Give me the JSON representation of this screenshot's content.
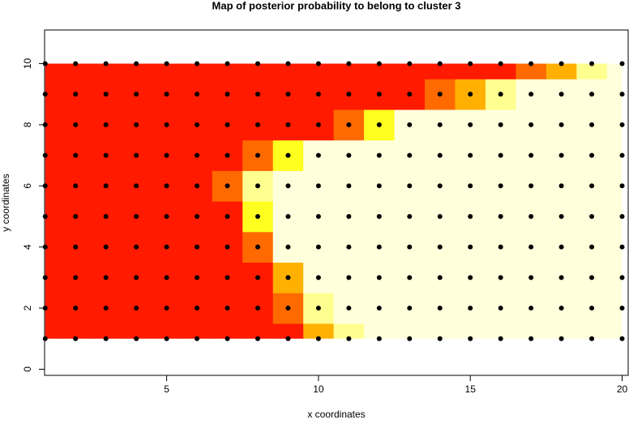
{
  "chart_data": {
    "type": "heatmap",
    "title": "Map of posterior probability to belong to cluster  3",
    "x_label": "x coordinates",
    "y_label": "y coordinates",
    "x": [
      1,
      2,
      3,
      4,
      5,
      6,
      7,
      8,
      9,
      10,
      11,
      12,
      13,
      14,
      15,
      16,
      17,
      18,
      19,
      20
    ],
    "y": [
      1,
      2,
      3,
      4,
      5,
      6,
      7,
      8,
      9,
      10
    ],
    "z": [
      [
        0,
        0,
        0,
        0,
        0,
        0,
        0,
        0,
        0,
        0.23,
        0.47,
        0.7,
        0.7,
        0.7,
        0.7,
        0.7,
        0.7,
        0.7,
        0.7,
        0.7
      ],
      [
        0,
        0,
        0,
        0,
        0,
        0,
        0,
        0,
        0.14,
        0.42,
        0.7,
        0.7,
        0.7,
        0.7,
        0.7,
        0.7,
        0.7,
        0.7,
        0.7,
        0.7
      ],
      [
        0,
        0,
        0,
        0,
        0,
        0,
        0,
        0,
        0.28,
        0.56,
        0.7,
        0.7,
        0.7,
        0.7,
        0.7,
        0.7,
        0.7,
        0.7,
        0.7,
        0.7
      ],
      [
        0,
        0,
        0,
        0,
        0,
        0,
        0,
        0.18,
        0.53,
        0.7,
        0.7,
        0.7,
        0.7,
        0.7,
        0.7,
        0.7,
        0.7,
        0.7,
        0.7,
        0.7
      ],
      [
        0,
        0,
        0,
        0,
        0,
        0,
        0,
        0.35,
        0.7,
        0.7,
        0.7,
        0.7,
        0.7,
        0.7,
        0.7,
        0.7,
        0.7,
        0.7,
        0.7,
        0.7
      ],
      [
        0,
        0,
        0,
        0,
        0,
        0,
        0.14,
        0.42,
        0.7,
        0.7,
        0.7,
        0.7,
        0.7,
        0.7,
        0.7,
        0.7,
        0.7,
        0.7,
        0.7,
        0.7
      ],
      [
        0,
        0,
        0,
        0,
        0,
        0,
        0,
        0.18,
        0.35,
        0.53,
        0.7,
        0.7,
        0.7,
        0.7,
        0.7,
        0.7,
        0.7,
        0.7,
        0.7,
        0.7
      ],
      [
        0,
        0,
        0,
        0,
        0,
        0,
        0,
        0,
        0,
        0,
        0.18,
        0.35,
        0.53,
        0.7,
        0.7,
        0.7,
        0.7,
        0.7,
        0.7,
        0.7
      ],
      [
        0,
        0,
        0,
        0,
        0,
        0,
        0,
        0,
        0,
        0,
        0,
        0,
        0,
        0.14,
        0.28,
        0.42,
        0.56,
        0.7,
        0.7,
        0.7
      ],
      [
        0,
        0,
        0,
        0,
        0,
        0,
        0,
        0,
        0,
        0,
        0,
        0,
        0,
        0,
        0,
        0,
        0.14,
        0.28,
        0.42,
        0.56
      ]
    ],
    "breaks": [
      0.1,
      0.2,
      0.3,
      0.4,
      0.5
    ],
    "colors": [
      "#ff1a00",
      "#ff6a00",
      "#ffb000",
      "#ffff20",
      "#ffff90",
      "#ffffdc"
    ],
    "point_color": "#000000",
    "xlim": [
      0.98,
      20.2
    ],
    "ylim": [
      -0.2,
      11.1
    ],
    "xticks": [
      5,
      10,
      15,
      20
    ],
    "yticks": [
      0,
      2,
      4,
      6,
      8,
      10
    ]
  }
}
